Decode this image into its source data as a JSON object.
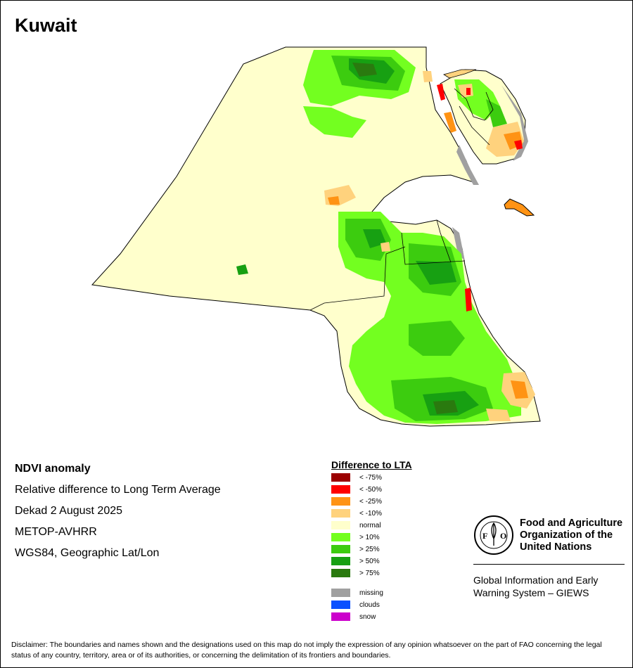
{
  "title": "Kuwait",
  "info": {
    "product": "NDVI anomaly",
    "description": "Relative difference to Long Term Average",
    "period": "Dekad 2 August 2025",
    "sensor": "METOP-AVHRR",
    "projection": "WGS84, Geographic Lat/Lon"
  },
  "legend": {
    "title": "Difference to LTA",
    "classes": [
      {
        "label": "< -75%",
        "color": "#9b0000"
      },
      {
        "label": "< -50%",
        "color": "#ff0000"
      },
      {
        "label": "< -25%",
        "color": "#ff9314"
      },
      {
        "label": "< -10%",
        "color": "#ffd27d"
      },
      {
        "label": "normal",
        "color": "#ffffcc"
      },
      {
        "label": "> 10%",
        "color": "#73ff20"
      },
      {
        "label": "> 25%",
        "color": "#3ccc0f"
      },
      {
        "label": "> 50%",
        "color": "#17a012"
      },
      {
        "label": "> 75%",
        "color": "#2a7a0f"
      }
    ],
    "other": [
      {
        "label": "missing",
        "color": "#a0a0a0"
      },
      {
        "label": "clouds",
        "color": "#0a50ff"
      },
      {
        "label": "snow",
        "color": "#cc00cc"
      }
    ]
  },
  "fao": {
    "logo_text": "FAO",
    "name_line1": "Food and Agriculture",
    "name_line2": "Organization of the",
    "name_line3": "United Nations",
    "system_line1": "Global Information and Early",
    "system_line2": "Warning System – GIEWS"
  },
  "disclaimer": "Disclaimer: The boundaries and names shown and the designations used on this map do not imply the expression of any opinion whatsoever on the part of FAO concerning the legal status of any country, territory, area or of its authorities, or concerning the delimitation of its frontiers and boundaries."
}
